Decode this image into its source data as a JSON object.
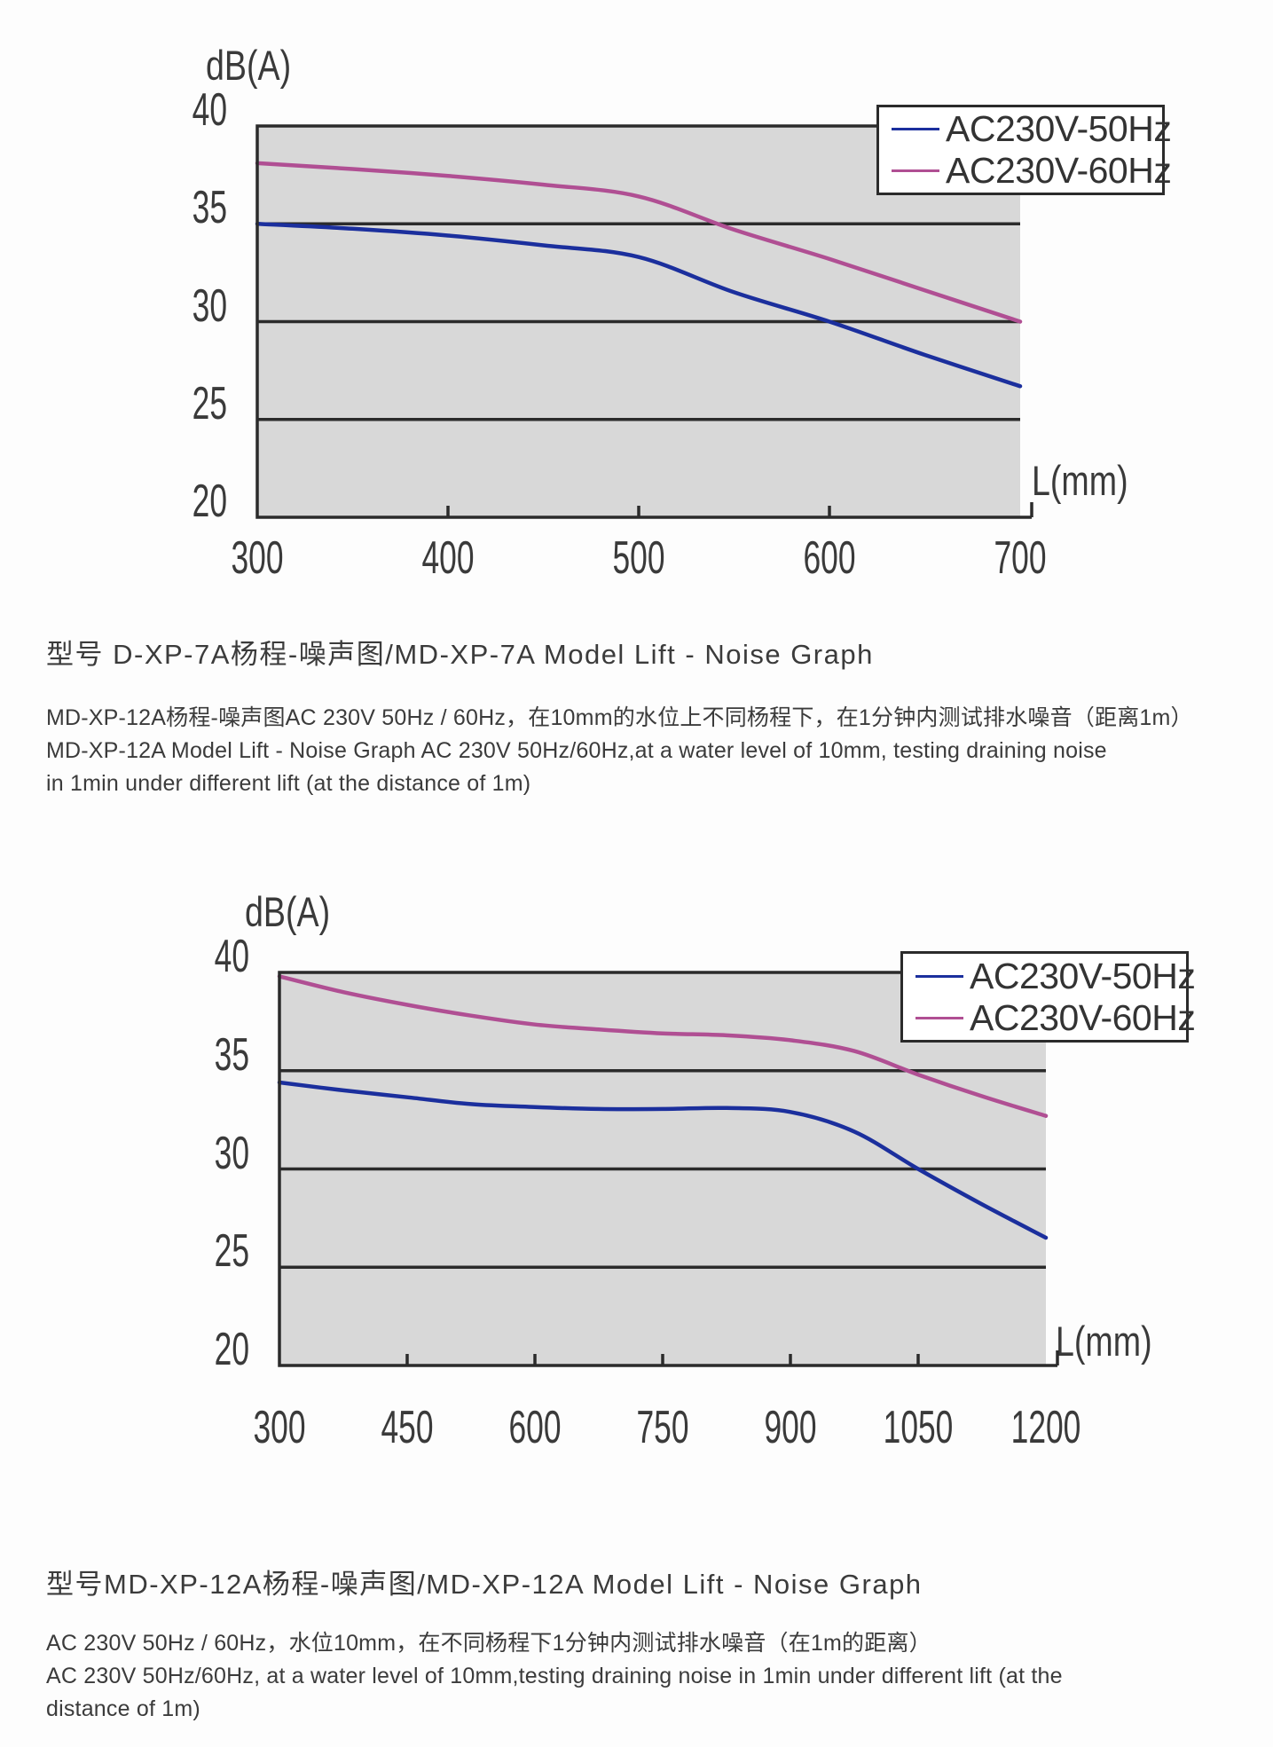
{
  "page": {
    "background": "#fdfdfd",
    "text_color": "#3b3b3b",
    "axis_color": "#2b2b2b",
    "plot_background": "#d8d8d8"
  },
  "chart_data": [
    {
      "type": "line",
      "ylabel": "dB(A)",
      "xlabel": "L(mm)",
      "xlim": [
        300,
        700
      ],
      "ylim": [
        20,
        40
      ],
      "x_ticks": [
        300,
        400,
        500,
        600,
        700
      ],
      "y_ticks": [
        40,
        35,
        30,
        25,
        20
      ],
      "grid": "horizontal",
      "legend_position": "top-right",
      "plot_bg": "#d8d8d8",
      "x": [
        300,
        350,
        400,
        450,
        500,
        550,
        600,
        650,
        700
      ],
      "series": [
        {
          "name": "AC230V-50Hz",
          "color": "#1b2f9d",
          "values": [
            35.0,
            34.75,
            34.4,
            33.9,
            33.3,
            31.5,
            30.0,
            28.3,
            26.7
          ]
        },
        {
          "name": "AC230V-60Hz",
          "color": "#b04f93",
          "values": [
            38.1,
            37.8,
            37.45,
            37.0,
            36.4,
            34.7,
            33.2,
            31.6,
            30.0
          ]
        }
      ]
    },
    {
      "type": "line",
      "ylabel": "dB(A)",
      "xlabel": "L(mm)",
      "xlim": [
        300,
        1200
      ],
      "ylim": [
        20,
        40
      ],
      "x_ticks": [
        300,
        450,
        600,
        750,
        900,
        1050,
        1200
      ],
      "y_ticks": [
        40,
        35,
        30,
        25,
        20
      ],
      "grid": "horizontal",
      "legend_position": "top-right",
      "plot_bg": "#d8d8d8",
      "x": [
        300,
        375,
        450,
        525,
        600,
        675,
        750,
        825,
        900,
        975,
        1050,
        1125,
        1200
      ],
      "series": [
        {
          "name": "AC230V-50Hz",
          "color": "#1b2f9d",
          "values": [
            34.4,
            34.0,
            33.65,
            33.3,
            33.15,
            33.05,
            33.05,
            33.1,
            32.9,
            31.9,
            30.0,
            28.2,
            26.5
          ]
        },
        {
          "name": "AC230V-60Hz",
          "color": "#b04f93",
          "values": [
            39.8,
            39.0,
            38.35,
            37.8,
            37.35,
            37.1,
            36.9,
            36.8,
            36.55,
            36.0,
            34.8,
            33.7,
            32.7
          ]
        }
      ]
    }
  ],
  "captions": [
    {
      "title": "型号 D-XP-7A杨程-噪声图/MD-XP-7A Model Lift - Noise Graph",
      "lines": [
        "MD-XP-12A杨程-噪声图AC 230V 50Hz / 60Hz，在10mm的水位上不同杨程下，在1分钟内测试排水噪音（距离1m）",
        "MD-XP-12A Model Lift - Noise Graph AC 230V 50Hz/60Hz,at a water level of 10mm, testing draining noise",
        "in 1min under different lift (at the distance of 1m)"
      ]
    },
    {
      "title": "型号MD-XP-12A杨程-噪声图/MD-XP-12A Model Lift - Noise Graph",
      "lines": [
        "AC 230V 50Hz / 60Hz，水位10mm，在不同杨程下1分钟内测试排水噪音（在1m的距离）",
        "AC 230V 50Hz/60Hz, at a water level of 10mm,testing draining noise in 1min under different lift (at the",
        "distance of 1m)"
      ]
    }
  ]
}
